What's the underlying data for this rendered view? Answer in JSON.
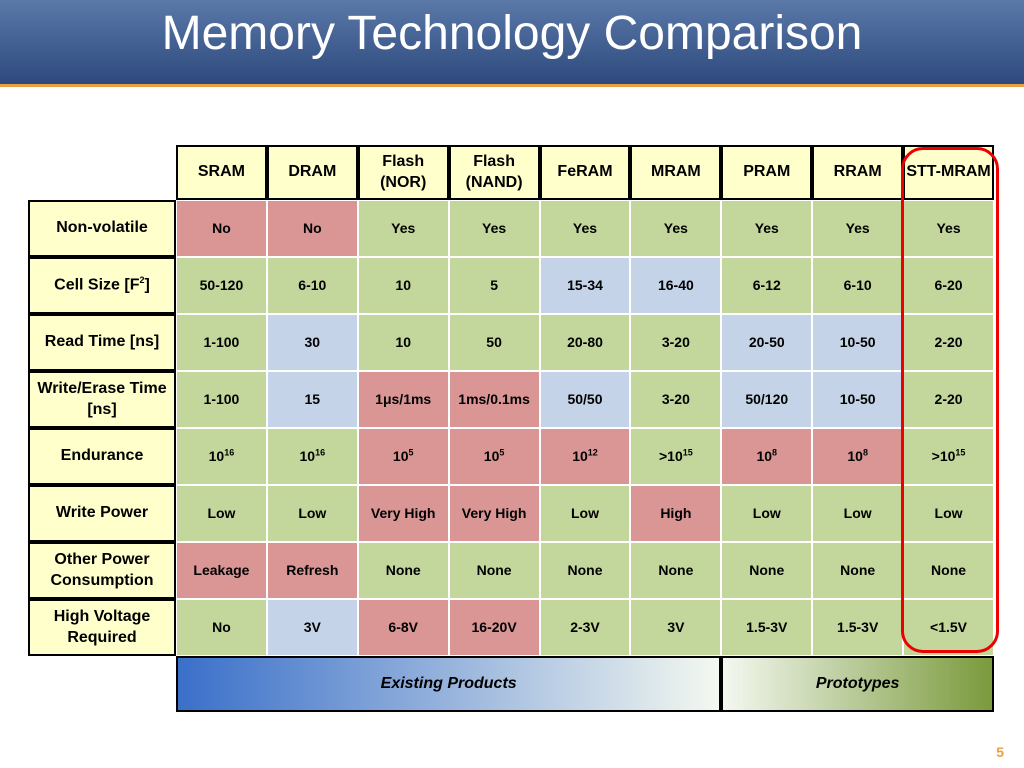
{
  "header": {
    "title": "Memory Technology Comparison"
  },
  "table": {
    "columns": [
      "SRAM",
      "DRAM",
      "Flash (NOR)",
      "Flash (NAND)",
      "FeRAM",
      "MRAM",
      "PRAM",
      "RRAM",
      "STT-MRAM"
    ],
    "rows": [
      {
        "label": "Non-volatile",
        "cells": [
          "No",
          "No",
          "Yes",
          "Yes",
          "Yes",
          "Yes",
          "Yes",
          "Yes",
          "Yes"
        ],
        "fills": [
          "#d99694",
          "#d99694",
          "#c3d69b",
          "#c3d69b",
          "#c3d69b",
          "#c3d69b",
          "#c3d69b",
          "#c3d69b",
          "#c3d69b"
        ]
      },
      {
        "label": {
          "base": "Cell Size [F",
          "sup": "2",
          "tail": "]"
        },
        "cells": [
          "50-120",
          "6-10",
          "10",
          "5",
          "15-34",
          "16-40",
          "6-12",
          "6-10",
          "6-20"
        ],
        "fills": [
          "#c3d69b",
          "#c3d69b",
          "#c3d69b",
          "#c3d69b",
          "#c5d3e8",
          "#c5d3e8",
          "#c3d69b",
          "#c3d69b",
          "#c3d69b"
        ]
      },
      {
        "label": "Read Time [ns]",
        "cells": [
          "1-100",
          "30",
          "10",
          "50",
          "20-80",
          "3-20",
          "20-50",
          "10-50",
          "2-20"
        ],
        "fills": [
          "#c3d69b",
          "#c5d3e8",
          "#c3d69b",
          "#c3d69b",
          "#c3d69b",
          "#c3d69b",
          "#c5d3e8",
          "#c5d3e8",
          "#c3d69b"
        ]
      },
      {
        "label": "Write/Erase Time [ns]",
        "cells": [
          "1-100",
          "15",
          "1μs/1ms",
          "1ms/0.1ms",
          "50/50",
          "3-20",
          "50/120",
          "10-50",
          "2-20"
        ],
        "fills": [
          "#c3d69b",
          "#c5d3e8",
          "#d99694",
          "#d99694",
          "#c5d3e8",
          "#c3d69b",
          "#c5d3e8",
          "#c5d3e8",
          "#c3d69b"
        ]
      },
      {
        "label": "Endurance",
        "cells": [
          {
            "base": "10",
            "sup": "16"
          },
          {
            "base": "10",
            "sup": "16"
          },
          {
            "base": "10",
            "sup": "5"
          },
          {
            "base": "10",
            "sup": "5"
          },
          {
            "base": "10",
            "sup": "12"
          },
          {
            "base": ">10",
            "sup": "15"
          },
          {
            "base": "10",
            "sup": "8"
          },
          {
            "base": "10",
            "sup": "8"
          },
          {
            "base": ">10",
            "sup": "15"
          }
        ],
        "fills": [
          "#c3d69b",
          "#c3d69b",
          "#d99694",
          "#d99694",
          "#d99694",
          "#c3d69b",
          "#d99694",
          "#d99694",
          "#c3d69b"
        ]
      },
      {
        "label": "Write Power",
        "cells": [
          "Low",
          "Low",
          "Very High",
          "Very High",
          "Low",
          "High",
          "Low",
          "Low",
          "Low"
        ],
        "fills": [
          "#c3d69b",
          "#c3d69b",
          "#d99694",
          "#d99694",
          "#c3d69b",
          "#d99694",
          "#c3d69b",
          "#c3d69b",
          "#c3d69b"
        ]
      },
      {
        "label": "Other Power Consumption",
        "cells": [
          "Leakage",
          "Refresh",
          "None",
          "None",
          "None",
          "None",
          "None",
          "None",
          "None"
        ],
        "fills": [
          "#d99694",
          "#d99694",
          "#c3d69b",
          "#c3d69b",
          "#c3d69b",
          "#c3d69b",
          "#c3d69b",
          "#c3d69b",
          "#c3d69b"
        ]
      },
      {
        "label": "High Voltage Required",
        "cells": [
          "No",
          "3V",
          "6-8V",
          "16-20V",
          "2-3V",
          "3V",
          "1.5-3V",
          "1.5-3V",
          "<1.5V"
        ],
        "fills": [
          "#c3d69b",
          "#c5d3e8",
          "#d99694",
          "#d99694",
          "#c3d69b",
          "#c3d69b",
          "#c3d69b",
          "#c3d69b",
          "#c3d69b"
        ]
      }
    ],
    "footer": [
      {
        "label": "Existing Products",
        "span": 6
      },
      {
        "label": "Prototypes",
        "span": 3
      }
    ]
  },
  "page_number": "5"
}
